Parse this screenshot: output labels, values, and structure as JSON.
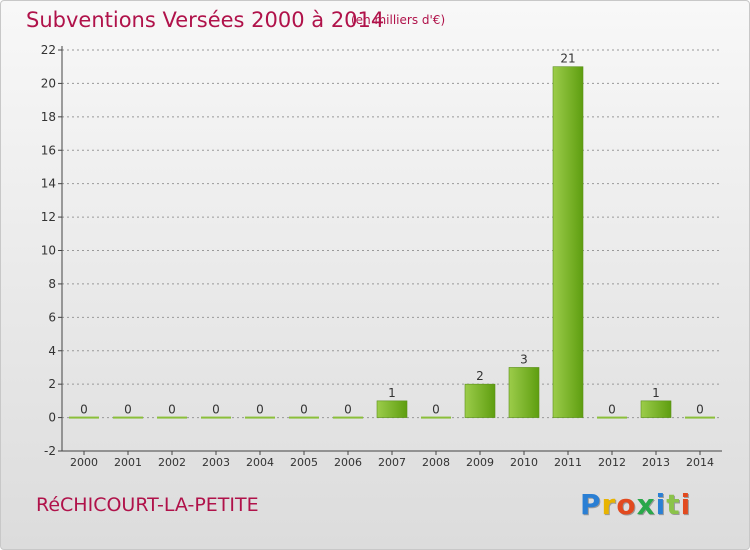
{
  "title": "Subventions Versées 2000 à 2014",
  "subtitle": "(en milliers d'€)",
  "commune": "RéCHICOURT-LA-PETITE",
  "logo": {
    "text": "Proxiti",
    "letter_colors": [
      "#2a7fd4",
      "#e8b400",
      "#e24a1f",
      "#2aa84a",
      "#2a7fd4",
      "#8bc34a",
      "#e24a1f"
    ]
  },
  "colors": {
    "title": "#b0124a",
    "bar_light": "#9ccc4a",
    "bar_dark": "#5e9e10",
    "axis": "#444444",
    "grid": "#999999"
  },
  "chart_data": {
    "type": "bar",
    "categories": [
      "2000",
      "2001",
      "2002",
      "2003",
      "2004",
      "2005",
      "2006",
      "2007",
      "2008",
      "2009",
      "2010",
      "2011",
      "2012",
      "2013",
      "2014"
    ],
    "values": [
      0,
      0,
      0,
      0,
      0,
      0,
      0,
      1,
      0,
      2,
      3,
      21,
      0,
      1,
      0
    ],
    "data_labels": [
      "0",
      "0",
      "0",
      "0",
      "0",
      "0",
      "0",
      "1",
      "0",
      "2",
      "3",
      "21",
      "0",
      "1",
      "0"
    ],
    "yticks": [
      -2,
      0,
      2,
      4,
      6,
      8,
      10,
      12,
      14,
      16,
      18,
      20,
      22
    ],
    "ylim": [
      -2,
      22
    ],
    "grid": "horizontal dashed",
    "legend": "none"
  }
}
